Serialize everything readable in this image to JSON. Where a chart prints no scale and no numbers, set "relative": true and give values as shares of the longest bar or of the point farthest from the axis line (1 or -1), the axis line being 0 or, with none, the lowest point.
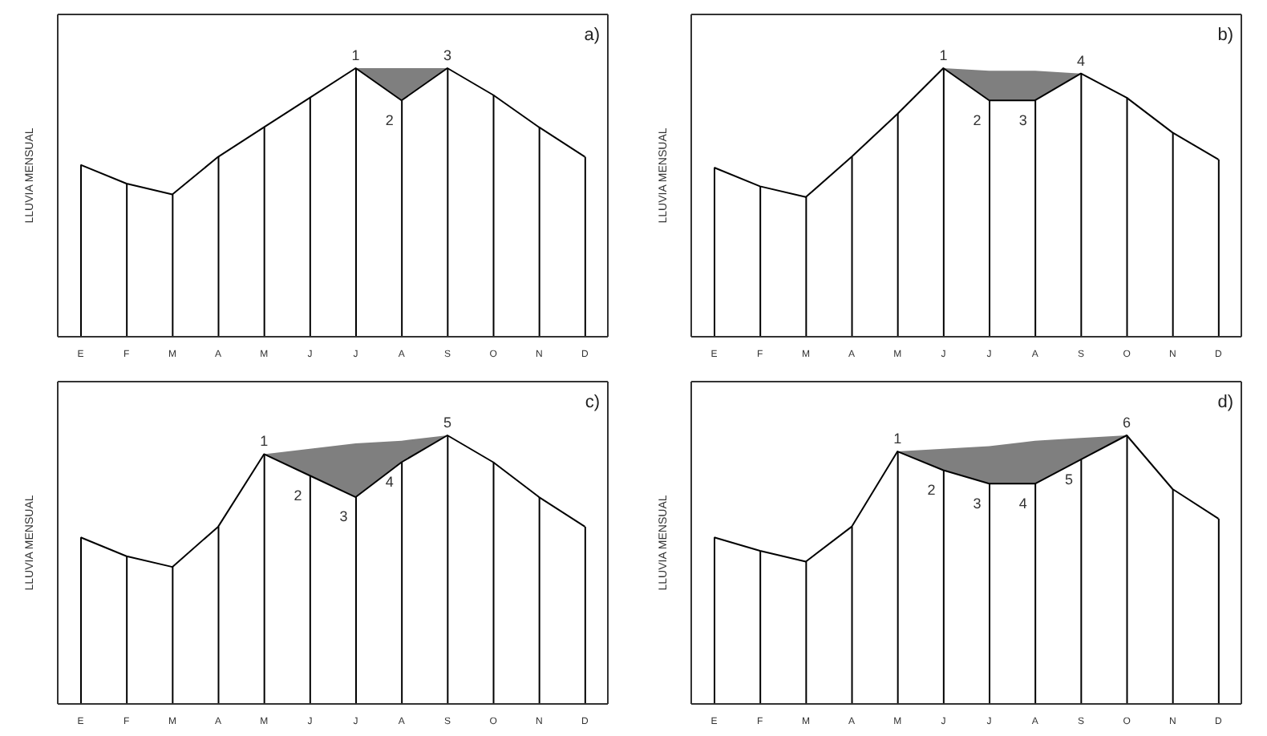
{
  "chart_data": [
    {
      "type": "line",
      "title": "a)",
      "ylabel": "LLUVIA MENSUAL",
      "relative": true,
      "categories": [
        "E",
        "F",
        "M",
        "A",
        "M",
        "J",
        "J",
        "A",
        "S",
        "O",
        "N",
        "D"
      ],
      "series": [
        {
          "color": "#000000",
          "values": [
            0.64,
            0.57,
            0.53,
            0.67,
            0.78,
            0.89,
            1,
            0.88,
            1,
            0.9,
            0.78,
            0.67
          ],
          "lower": [
            null,
            null,
            null,
            null,
            null,
            null,
            1,
            0.88,
            1,
            null,
            null,
            null
          ],
          "upper": [
            null,
            null,
            null,
            null,
            null,
            null,
            1,
            1,
            1,
            null,
            null,
            null
          ]
        },
        {
          "type": "bar",
          "color": "#000000",
          "values": [
            0.64,
            0.57,
            0.53,
            0.67,
            0.78,
            0.89,
            1,
            0.88,
            1,
            0.9,
            0.78,
            0.67
          ]
        }
      ],
      "annotations": [
        "1",
        "2",
        "3"
      ]
    },
    {
      "type": "line",
      "title": "b)",
      "ylabel": "LLUVIA MENSUAL",
      "relative": true,
      "categories": [
        "E",
        "F",
        "M",
        "A",
        "M",
        "J",
        "J",
        "A",
        "S",
        "O",
        "N",
        "D"
      ],
      "series": [
        {
          "color": "#000000",
          "values": [
            0.63,
            0.56,
            0.52,
            0.67,
            0.83,
            1,
            0.88,
            0.88,
            0.98,
            0.89,
            0.76,
            0.66
          ],
          "lower": [
            null,
            null,
            null,
            null,
            null,
            1,
            0.88,
            0.88,
            0.98,
            null,
            null,
            null
          ],
          "upper": [
            null,
            null,
            null,
            null,
            null,
            1,
            0.99,
            0.99,
            0.98,
            null,
            null,
            null
          ]
        },
        {
          "type": "bar",
          "color": "#000000",
          "values": [
            0.63,
            0.56,
            0.52,
            0.67,
            0.83,
            1,
            0.88,
            0.88,
            0.98,
            0.89,
            0.76,
            0.66
          ]
        }
      ],
      "annotations": [
        "1",
        "2",
        "3",
        "4"
      ]
    },
    {
      "type": "line",
      "title": "c)",
      "ylabel": "LLUVIA MENSUAL",
      "relative": true,
      "categories": [
        "E",
        "F",
        "M",
        "A",
        "M",
        "J",
        "J",
        "A",
        "S",
        "O",
        "N",
        "D"
      ],
      "series": [
        {
          "color": "#000000",
          "values": [
            0.62,
            0.55,
            0.51,
            0.66,
            0.93,
            0.85,
            0.77,
            0.9,
            1,
            0.9,
            0.77,
            0.66
          ],
          "lower": [
            null,
            null,
            null,
            null,
            0.93,
            0.85,
            0.77,
            0.9,
            1,
            null,
            null,
            null
          ],
          "upper": [
            null,
            null,
            null,
            null,
            0.93,
            0.95,
            0.97,
            0.98,
            1,
            null,
            null,
            null
          ]
        },
        {
          "type": "bar",
          "color": "#000000",
          "values": [
            0.62,
            0.55,
            0.51,
            0.66,
            0.93,
            0.85,
            0.77,
            0.9,
            1,
            0.9,
            0.77,
            0.66
          ]
        }
      ],
      "annotations": [
        "1",
        "2",
        "3",
        "4",
        "5"
      ]
    },
    {
      "type": "line",
      "title": "d)",
      "ylabel": "LLUVIA MENSUAL",
      "relative": true,
      "categories": [
        "E",
        "F",
        "M",
        "A",
        "M",
        "J",
        "J",
        "A",
        "S",
        "O",
        "N",
        "D"
      ],
      "series": [
        {
          "color": "#000000",
          "values": [
            0.62,
            0.57,
            0.53,
            0.66,
            0.94,
            0.87,
            0.82,
            0.82,
            0.91,
            1,
            0.8,
            0.69
          ],
          "lower": [
            null,
            null,
            null,
            null,
            0.94,
            0.87,
            0.82,
            0.82,
            0.91,
            1,
            null,
            null
          ],
          "upper": [
            null,
            null,
            null,
            null,
            0.94,
            0.95,
            0.96,
            0.98,
            0.99,
            1,
            null,
            null
          ]
        },
        {
          "type": "bar",
          "color": "#000000",
          "values": [
            0.62,
            0.57,
            0.53,
            0.66,
            0.94,
            0.87,
            0.82,
            0.82,
            0.91,
            1,
            0.8,
            0.69
          ]
        }
      ],
      "annotations": [
        "1",
        "2",
        "3",
        "4",
        "5",
        "6"
      ]
    }
  ]
}
